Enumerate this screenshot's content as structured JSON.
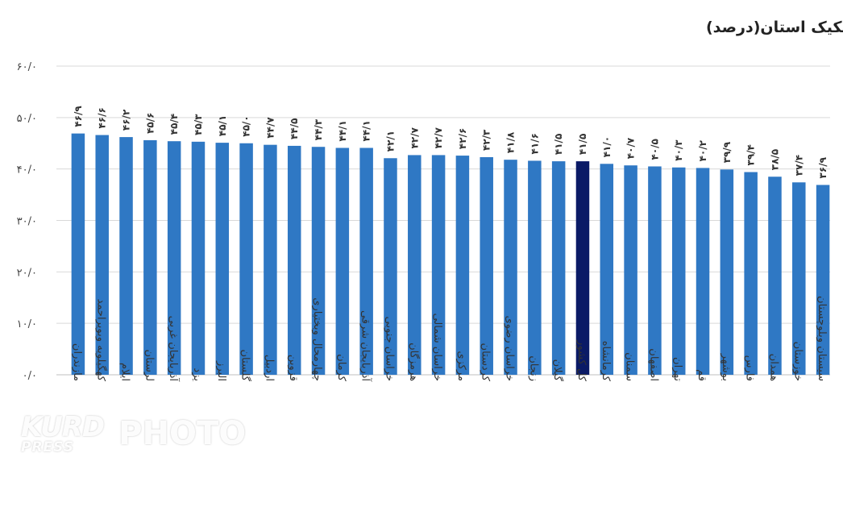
{
  "chart_data": {
    "type": "bar",
    "title": "نرخ تورم دوازده ماهه خانوارهای شهری به تفکیک استان(درصد)",
    "xlabel": "",
    "ylabel": "",
    "ylim": [
      0,
      60
    ],
    "yticks": [
      0,
      10,
      20,
      30,
      40,
      50,
      60
    ],
    "ytick_labels": [
      "۰/۰",
      "۱۰/۰",
      "۲۰/۰",
      "۳۰/۰",
      "۴۰/۰",
      "۵۰/۰",
      "۶۰/۰"
    ],
    "grid": true,
    "categories": [
      "مازندران",
      "کهگیلویه وبویراحمد",
      "ایلام",
      "لرستان",
      "آذربایجان غربی",
      "یزد",
      "البرز",
      "گلستان",
      "اردبیل",
      "قزوین",
      "چهارمحال وبختیاری",
      "کرمان",
      "آذربایجان شرقی",
      "خراسان جنوبی",
      "هرمزگان",
      "خراسان شمالی",
      "مرکزی",
      "کردستان",
      "خراسان رضوی",
      "زنجان",
      "گیلان",
      "کل کشور",
      "کرمانشاه",
      "سمنان",
      "اصفهان",
      "تهران",
      "قم",
      "بوشهر",
      "فارس",
      "همدان",
      "خوزستان",
      "سیستان وبلوچستان"
    ],
    "values": [
      46.9,
      46.6,
      46.2,
      45.6,
      45.4,
      45.3,
      45.1,
      45.0,
      44.7,
      44.5,
      44.3,
      44.1,
      44.1,
      42.1,
      42.7,
      42.7,
      42.6,
      42.3,
      41.8,
      41.6,
      41.5,
      41.5,
      41.0,
      40.7,
      40.5,
      40.3,
      40.2,
      39.9,
      39.4,
      38.5,
      37.4,
      36.9
    ],
    "value_labels": [
      "۴۶/۹",
      "۴۶/۶",
      "۴۶/۲",
      "۴۵/۶",
      "۴۵/۴",
      "۴۵/۳",
      "۴۵/۱",
      "۴۵/۰",
      "۴۴/۷",
      "۴۴/۵",
      "۴۴/۳",
      "۴۴/۱",
      "۴۴/۱",
      "۴۲/۱",
      "۴۲/۷",
      "۴۲/۷",
      "۴۲/۶",
      "۴۲/۳",
      "۴۱/۸",
      "۴۱/۶",
      "۴۱/۵",
      "۴۱/۵",
      "۴۱/۰",
      "۴۰/۷",
      "۴۰/۵",
      "۴۰/۳",
      "۴۰/۲",
      "۳۹/۹",
      "۳۹/۴",
      "۳۸/۵",
      "۳۷/۴",
      "۳۶/۹"
    ],
    "highlight_category": "کل کشور",
    "colors": {
      "bar": "#2f78c4",
      "highlight": "#0a1a66"
    }
  },
  "watermark": {
    "brand_top": "KURD",
    "brand_bottom": "PRESS",
    "photo": "PHOTO"
  }
}
